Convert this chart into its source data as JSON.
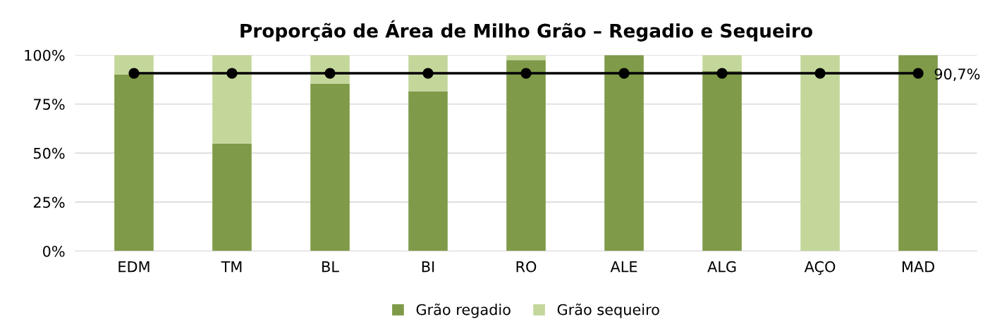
{
  "chart_data": {
    "type": "bar",
    "title": "Proporção de Área de Milho Grão – Regadio e Sequeiro",
    "categories": [
      "EDM",
      "TM",
      "BL",
      "BI",
      "RO",
      "ALE",
      "ALG",
      "AÇO",
      "MAD"
    ],
    "stacked": true,
    "series": [
      {
        "name": "Grão regadio",
        "color": "#7f9a48",
        "values": [
          90,
          54.9,
          85.4,
          81.6,
          97.5,
          100,
          92,
          0,
          100
        ]
      },
      {
        "name": "Grão sequeiro",
        "color": "#c4d79b",
        "values": [
          10,
          45.1,
          14.6,
          18.4,
          2.5,
          0,
          8,
          100,
          0
        ]
      },
      {
        "type": "line",
        "color": "#000000",
        "marker": "circle",
        "values": [
          90.7,
          90.7,
          90.7,
          90.7,
          90.7,
          90.7,
          90.7,
          90.7,
          90.7
        ],
        "value_labels": [
          null,
          null,
          null,
          null,
          null,
          null,
          null,
          null,
          "90,7%"
        ]
      }
    ],
    "ylim": [
      0,
      100
    ],
    "yticks": [
      {
        "value": 0,
        "label": "0%"
      },
      {
        "value": 25,
        "label": "25%"
      },
      {
        "value": 50,
        "label": "50%"
      },
      {
        "value": 75,
        "label": "75%"
      },
      {
        "value": 100,
        "label": "100%"
      }
    ],
    "grid": "y",
    "legend": "bottom"
  }
}
